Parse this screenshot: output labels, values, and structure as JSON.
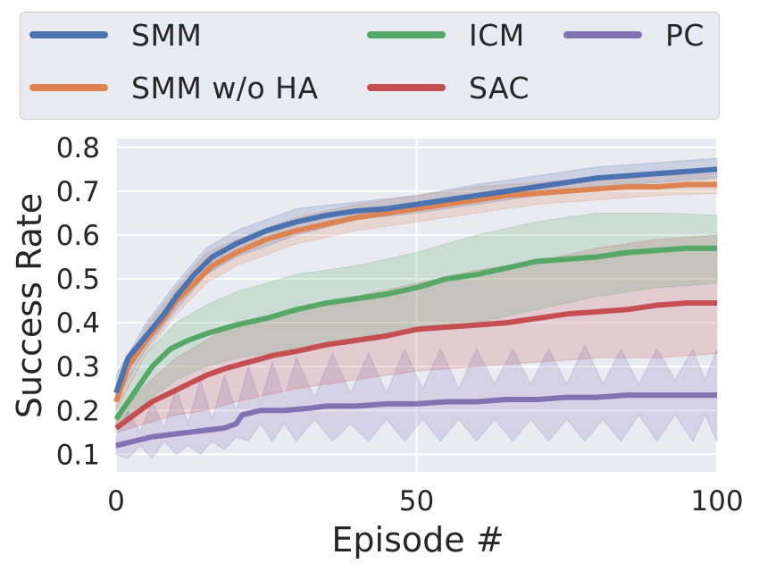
{
  "chart_data": {
    "type": "line",
    "title": "",
    "xlabel": "Episode #",
    "ylabel": "Success Rate",
    "xlim": [
      0,
      100
    ],
    "ylim": [
      0.06,
      0.82
    ],
    "xticks": [
      0,
      50,
      100
    ],
    "yticks": [
      0.1,
      0.2,
      0.3,
      0.4,
      0.5,
      0.6,
      0.7,
      0.8
    ],
    "xtick_labels": [
      "0",
      "50",
      "100"
    ],
    "ytick_labels": [
      "0.1",
      "0.2",
      "0.3",
      "0.4",
      "0.5",
      "0.6",
      "0.7",
      "0.8"
    ],
    "grid": true,
    "legend_position": "top",
    "series": [
      {
        "name": "SMM",
        "color": "#4c72b0",
        "points": [
          [
            0,
            0.24
          ],
          [
            2,
            0.32
          ],
          [
            5,
            0.37
          ],
          [
            8,
            0.42
          ],
          [
            10,
            0.46
          ],
          [
            13,
            0.51
          ],
          [
            16,
            0.55
          ],
          [
            20,
            0.58
          ],
          [
            25,
            0.61
          ],
          [
            30,
            0.63
          ],
          [
            35,
            0.645
          ],
          [
            40,
            0.655
          ],
          [
            45,
            0.66
          ],
          [
            50,
            0.67
          ],
          [
            55,
            0.68
          ],
          [
            60,
            0.69
          ],
          [
            65,
            0.7
          ],
          [
            70,
            0.71
          ],
          [
            75,
            0.72
          ],
          [
            80,
            0.73
          ],
          [
            85,
            0.735
          ],
          [
            90,
            0.74
          ],
          [
            95,
            0.745
          ],
          [
            100,
            0.75
          ]
        ],
        "band": [
          [
            0,
            0.22,
            0.28
          ],
          [
            5,
            0.34,
            0.4
          ],
          [
            10,
            0.43,
            0.49
          ],
          [
            15,
            0.51,
            0.57
          ],
          [
            20,
            0.55,
            0.61
          ],
          [
            30,
            0.6,
            0.66
          ],
          [
            40,
            0.635,
            0.675
          ],
          [
            50,
            0.65,
            0.69
          ],
          [
            60,
            0.67,
            0.715
          ],
          [
            70,
            0.69,
            0.735
          ],
          [
            80,
            0.71,
            0.755
          ],
          [
            90,
            0.72,
            0.765
          ],
          [
            100,
            0.73,
            0.775
          ]
        ]
      },
      {
        "name": "SMM w/o HA",
        "color": "#dd8452",
        "points": [
          [
            0,
            0.22
          ],
          [
            2,
            0.3
          ],
          [
            5,
            0.36
          ],
          [
            8,
            0.41
          ],
          [
            10,
            0.45
          ],
          [
            13,
            0.49
          ],
          [
            16,
            0.53
          ],
          [
            20,
            0.56
          ],
          [
            25,
            0.59
          ],
          [
            30,
            0.61
          ],
          [
            35,
            0.625
          ],
          [
            40,
            0.64
          ],
          [
            45,
            0.65
          ],
          [
            50,
            0.66
          ],
          [
            55,
            0.67
          ],
          [
            60,
            0.68
          ],
          [
            65,
            0.69
          ],
          [
            70,
            0.695
          ],
          [
            75,
            0.7
          ],
          [
            80,
            0.705
          ],
          [
            85,
            0.71
          ],
          [
            90,
            0.71
          ],
          [
            95,
            0.715
          ],
          [
            100,
            0.715
          ]
        ],
        "band": [
          [
            0,
            0.2,
            0.25
          ],
          [
            5,
            0.33,
            0.39
          ],
          [
            10,
            0.42,
            0.48
          ],
          [
            15,
            0.49,
            0.56
          ],
          [
            20,
            0.53,
            0.59
          ],
          [
            30,
            0.58,
            0.64
          ],
          [
            40,
            0.61,
            0.67
          ],
          [
            50,
            0.63,
            0.69
          ],
          [
            60,
            0.65,
            0.71
          ],
          [
            70,
            0.67,
            0.72
          ],
          [
            80,
            0.68,
            0.73
          ],
          [
            90,
            0.69,
            0.735
          ],
          [
            100,
            0.695,
            0.74
          ]
        ]
      },
      {
        "name": "ICM",
        "color": "#55a868",
        "points": [
          [
            0,
            0.18
          ],
          [
            3,
            0.24
          ],
          [
            6,
            0.3
          ],
          [
            9,
            0.34
          ],
          [
            12,
            0.36
          ],
          [
            15,
            0.375
          ],
          [
            20,
            0.395
          ],
          [
            25,
            0.41
          ],
          [
            30,
            0.43
          ],
          [
            35,
            0.445
          ],
          [
            40,
            0.455
          ],
          [
            45,
            0.465
          ],
          [
            50,
            0.48
          ],
          [
            55,
            0.5
          ],
          [
            60,
            0.51
          ],
          [
            65,
            0.525
          ],
          [
            70,
            0.54
          ],
          [
            75,
            0.545
          ],
          [
            80,
            0.55
          ],
          [
            85,
            0.56
          ],
          [
            90,
            0.565
          ],
          [
            95,
            0.57
          ],
          [
            100,
            0.57
          ]
        ],
        "band": [
          [
            0,
            0.16,
            0.21
          ],
          [
            5,
            0.22,
            0.33
          ],
          [
            10,
            0.27,
            0.4
          ],
          [
            15,
            0.3,
            0.44
          ],
          [
            20,
            0.32,
            0.47
          ],
          [
            30,
            0.34,
            0.51
          ],
          [
            40,
            0.36,
            0.53
          ],
          [
            50,
            0.38,
            0.56
          ],
          [
            60,
            0.4,
            0.6
          ],
          [
            70,
            0.43,
            0.63
          ],
          [
            80,
            0.46,
            0.65
          ],
          [
            90,
            0.48,
            0.65
          ],
          [
            100,
            0.49,
            0.645
          ]
        ]
      },
      {
        "name": "SAC",
        "color": "#c44e52",
        "points": [
          [
            0,
            0.16
          ],
          [
            3,
            0.19
          ],
          [
            6,
            0.22
          ],
          [
            9,
            0.24
          ],
          [
            12,
            0.26
          ],
          [
            15,
            0.28
          ],
          [
            18,
            0.295
          ],
          [
            22,
            0.31
          ],
          [
            26,
            0.325
          ],
          [
            30,
            0.335
          ],
          [
            35,
            0.35
          ],
          [
            40,
            0.36
          ],
          [
            45,
            0.37
          ],
          [
            50,
            0.385
          ],
          [
            55,
            0.39
          ],
          [
            60,
            0.395
          ],
          [
            65,
            0.4
          ],
          [
            70,
            0.41
          ],
          [
            75,
            0.42
          ],
          [
            80,
            0.425
          ],
          [
            85,
            0.43
          ],
          [
            90,
            0.44
          ],
          [
            95,
            0.445
          ],
          [
            100,
            0.445
          ]
        ],
        "band": [
          [
            0,
            0.15,
            0.18
          ],
          [
            5,
            0.17,
            0.26
          ],
          [
            10,
            0.19,
            0.32
          ],
          [
            15,
            0.2,
            0.36
          ],
          [
            20,
            0.22,
            0.4
          ],
          [
            30,
            0.25,
            0.43
          ],
          [
            40,
            0.27,
            0.46
          ],
          [
            50,
            0.29,
            0.49
          ],
          [
            60,
            0.3,
            0.52
          ],
          [
            70,
            0.31,
            0.54
          ],
          [
            80,
            0.32,
            0.57
          ],
          [
            90,
            0.32,
            0.59
          ],
          [
            100,
            0.33,
            0.6
          ]
        ]
      },
      {
        "name": "PC",
        "color": "#8172b3",
        "points": [
          [
            0,
            0.12
          ],
          [
            3,
            0.13
          ],
          [
            6,
            0.14
          ],
          [
            9,
            0.145
          ],
          [
            12,
            0.15
          ],
          [
            15,
            0.155
          ],
          [
            18,
            0.16
          ],
          [
            20,
            0.17
          ],
          [
            21,
            0.19
          ],
          [
            24,
            0.2
          ],
          [
            28,
            0.2
          ],
          [
            32,
            0.205
          ],
          [
            35,
            0.21
          ],
          [
            40,
            0.21
          ],
          [
            45,
            0.215
          ],
          [
            50,
            0.215
          ],
          [
            55,
            0.22
          ],
          [
            60,
            0.22
          ],
          [
            65,
            0.225
          ],
          [
            70,
            0.225
          ],
          [
            75,
            0.23
          ],
          [
            80,
            0.23
          ],
          [
            85,
            0.235
          ],
          [
            90,
            0.235
          ],
          [
            95,
            0.235
          ],
          [
            100,
            0.235
          ]
        ],
        "band": [
          [
            0,
            0.1,
            0.14
          ],
          [
            2,
            0.09,
            0.2
          ],
          [
            4,
            0.12,
            0.15
          ],
          [
            6,
            0.09,
            0.22
          ],
          [
            8,
            0.13,
            0.16
          ],
          [
            10,
            0.1,
            0.25
          ],
          [
            12,
            0.12,
            0.17
          ],
          [
            14,
            0.1,
            0.27
          ],
          [
            16,
            0.13,
            0.18
          ],
          [
            18,
            0.11,
            0.28
          ],
          [
            20,
            0.14,
            0.2
          ],
          [
            22,
            0.13,
            0.3
          ],
          [
            24,
            0.17,
            0.22
          ],
          [
            26,
            0.13,
            0.31
          ],
          [
            28,
            0.17,
            0.23
          ],
          [
            30,
            0.13,
            0.32
          ],
          [
            33,
            0.18,
            0.23
          ],
          [
            36,
            0.13,
            0.33
          ],
          [
            39,
            0.17,
            0.24
          ],
          [
            42,
            0.13,
            0.33
          ],
          [
            45,
            0.18,
            0.24
          ],
          [
            48,
            0.13,
            0.34
          ],
          [
            51,
            0.18,
            0.25
          ],
          [
            54,
            0.13,
            0.34
          ],
          [
            57,
            0.18,
            0.25
          ],
          [
            60,
            0.13,
            0.34
          ],
          [
            63,
            0.18,
            0.26
          ],
          [
            66,
            0.13,
            0.34
          ],
          [
            69,
            0.18,
            0.26
          ],
          [
            72,
            0.13,
            0.34
          ],
          [
            75,
            0.18,
            0.26
          ],
          [
            78,
            0.13,
            0.35
          ],
          [
            81,
            0.18,
            0.26
          ],
          [
            84,
            0.13,
            0.34
          ],
          [
            87,
            0.19,
            0.26
          ],
          [
            90,
            0.13,
            0.34
          ],
          [
            93,
            0.19,
            0.27
          ],
          [
            96,
            0.13,
            0.34
          ],
          [
            98,
            0.19,
            0.27
          ],
          [
            100,
            0.13,
            0.34
          ]
        ]
      }
    ]
  }
}
